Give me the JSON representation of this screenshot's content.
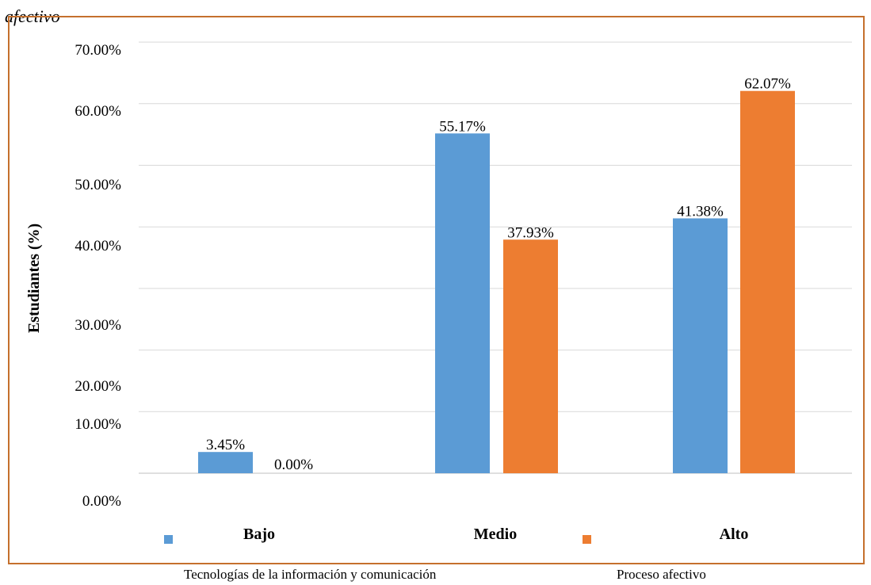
{
  "caption": "afectivo",
  "frame_color": "#c5702d",
  "chart_data": {
    "type": "bar",
    "categories": [
      "Bajo",
      "Medio",
      "Alto"
    ],
    "series": [
      {
        "name": "Tecnologías de la información y comunicación",
        "values": [
          3.45,
          55.17,
          41.38
        ],
        "labels": [
          "3.45%",
          "55.17%",
          "41.38%"
        ],
        "color": "#5b9bd5"
      },
      {
        "name": "Proceso afectivo",
        "values": [
          0.0,
          37.93,
          62.07
        ],
        "labels": [
          "0.00%",
          "37.93%",
          "62.07%"
        ],
        "color": "#ed7d31"
      }
    ],
    "ylabel": "Estudiantes (%)",
    "xlabel": "",
    "ylim": [
      0,
      70
    ],
    "grid": true,
    "y_tick_labels": [
      "0.00%",
      "10.00%",
      "20.00%",
      "30.00%",
      "40.00%",
      "50.00%",
      "60.00%",
      "70.00%"
    ],
    "legend_position": "bottom"
  }
}
